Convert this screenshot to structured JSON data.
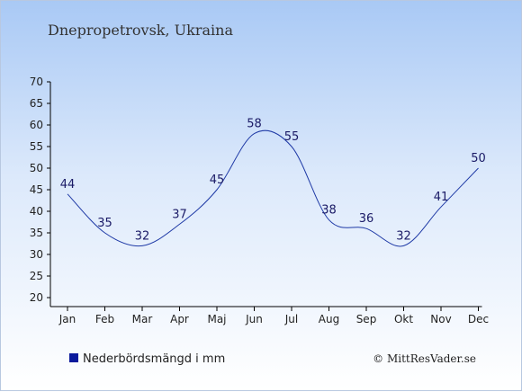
{
  "chart_data": {
    "type": "line",
    "title": "Dnepropetrovsk, Ukraina",
    "categories": [
      "Jan",
      "Feb",
      "Mar",
      "Apr",
      "Maj",
      "Jun",
      "Jul",
      "Aug",
      "Sep",
      "Okt",
      "Nov",
      "Dec"
    ],
    "series": [
      {
        "name": "Nederbördsmängd i mm",
        "values": [
          44,
          35,
          32,
          37,
          45,
          58,
          55,
          38,
          36,
          32,
          41,
          50
        ],
        "color": "#1f3aa6"
      }
    ],
    "ylim": [
      20,
      70
    ],
    "yticks": [
      20,
      25,
      30,
      35,
      40,
      45,
      50,
      55,
      60,
      65,
      70
    ],
    "grid": false,
    "legend": "bottom-left"
  },
  "legend": {
    "label": "Nederbördsmängd i mm",
    "swatch_color": "#0a1a9c"
  },
  "credit": "© MittResVader.se",
  "colors": {
    "line": "#1f3aa6",
    "axis": "#000000"
  }
}
